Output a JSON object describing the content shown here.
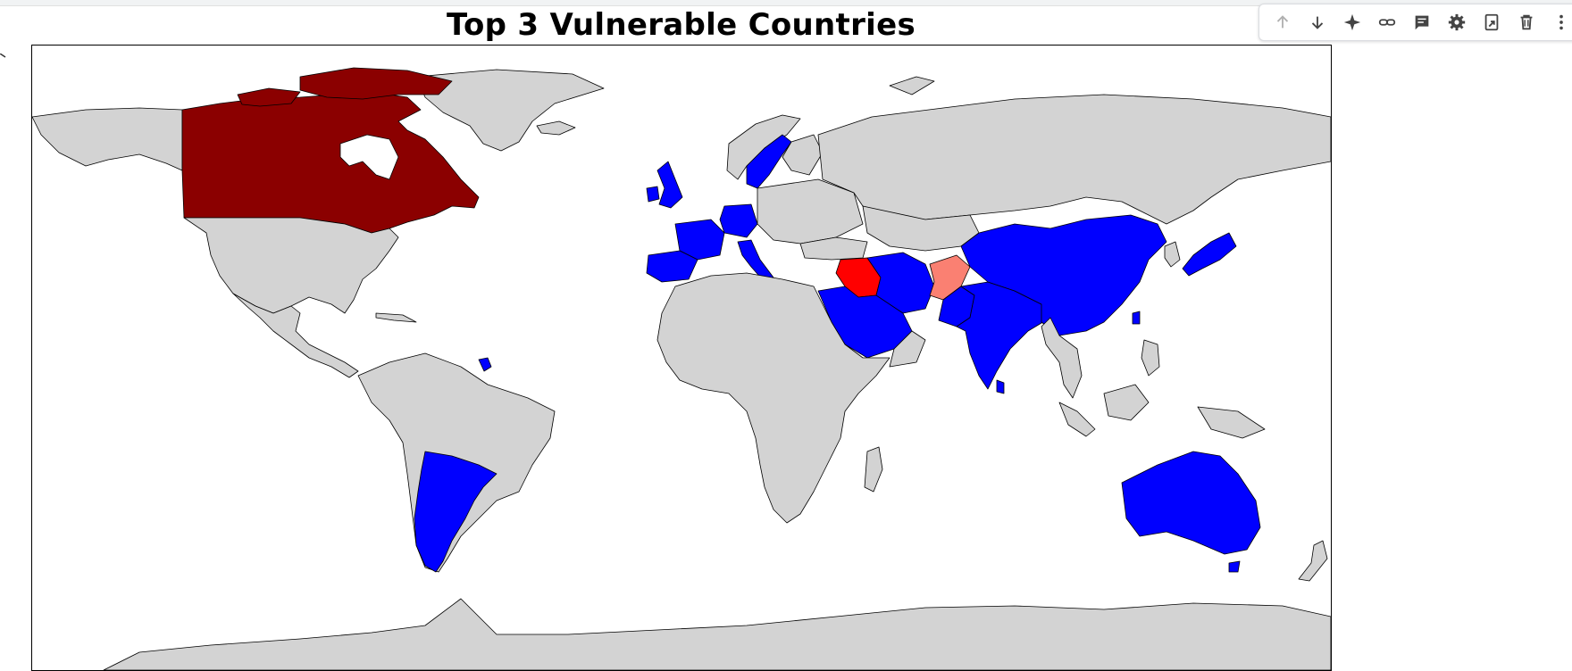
{
  "chart": {
    "title": "Top 3 Vulnerable Countries"
  },
  "map_data": {
    "type": "choropleth",
    "projection": "plate-carree",
    "default_fill": "#d3d3d3",
    "ocean_fill": "#ffffff",
    "border_color": "#000000",
    "highlight_groups": [
      {
        "color": "#8b0000",
        "countries": [
          "Canada"
        ]
      },
      {
        "color": "#ff0000",
        "countries": [
          "Iraq"
        ]
      },
      {
        "color": "#fa8072",
        "countries": [
          "Afghanistan"
        ]
      },
      {
        "color": "#0000ff",
        "countries": [
          "China",
          "India",
          "Japan",
          "Australia",
          "Argentina",
          "Saudi Arabia",
          "Iran",
          "Pakistan",
          "France",
          "Spain",
          "Germany",
          "Italy",
          "United Kingdom",
          "Sweden",
          "Netherlands",
          "Belgium",
          "Ireland",
          "Sri Lanka",
          "Nepal",
          "Bangladesh",
          "Taiwan",
          "French Guiana",
          "Kuwait",
          "Qatar",
          "United Arab Emirates",
          "Oman",
          "Yemen",
          "Tasmania"
        ]
      }
    ]
  },
  "toolbar": {
    "icons": [
      "arrow-up-icon",
      "arrow-down-icon",
      "sparkle-icon",
      "link-icon",
      "comment-icon",
      "gear-icon",
      "mirror-cell-icon",
      "trash-icon",
      "more-vert-icon"
    ]
  }
}
